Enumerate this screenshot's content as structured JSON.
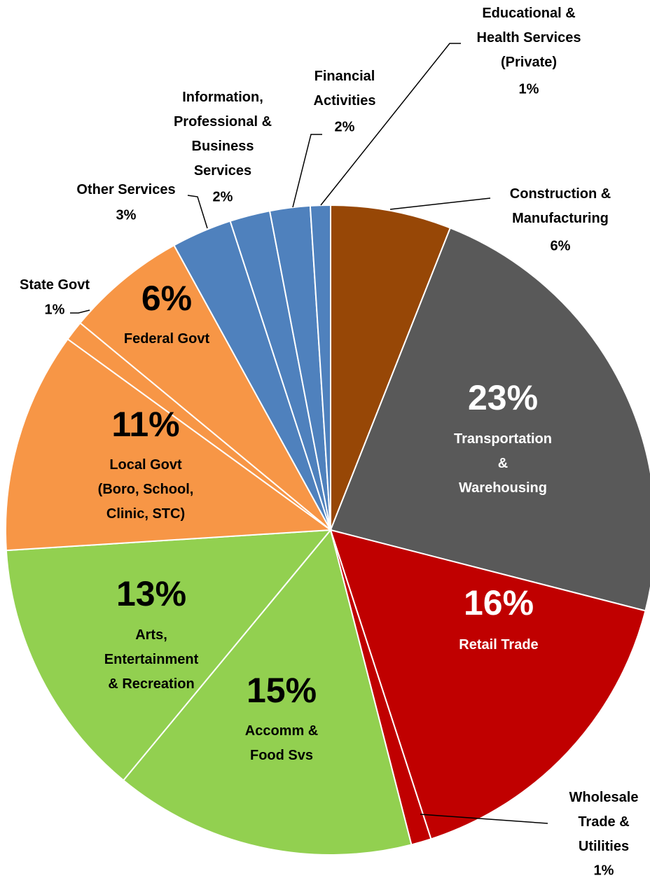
{
  "chart_data": {
    "type": "pie",
    "categories": [
      "Construction &\nManufacturing",
      "Transportation\n&\nWarehousing",
      "Retail Trade",
      "Wholesale\nTrade &\nUtilities",
      "Accomm &\nFood Svs",
      "Arts,\nEntertainment\n& Recreation",
      "Local Govt\n(Boro, School,\nClinic,  STC)",
      "State Govt",
      "Federal Govt",
      "Other Services",
      "Information,\nProfessional &\nBusiness\nServices",
      "Financial\nActivities",
      "Educational &\nHealth Services\n(Private)"
    ],
    "values": [
      6,
      23,
      16,
      1,
      15,
      13,
      11,
      1,
      6,
      3,
      2,
      2,
      1
    ],
    "value_labels": [
      "6%",
      "23%",
      "16%",
      "1%",
      "15%",
      "13%",
      "11%",
      "1%",
      "6%",
      "3%",
      "2%",
      "2%",
      "1%"
    ],
    "colors": [
      "#974706",
      "#595959",
      "#c00000",
      "#c00000",
      "#92d050",
      "#92d050",
      "#f79646",
      "#f79646",
      "#f79646",
      "#4f81bd",
      "#4f81bd",
      "#4f81bd",
      "#4f81bd"
    ]
  }
}
